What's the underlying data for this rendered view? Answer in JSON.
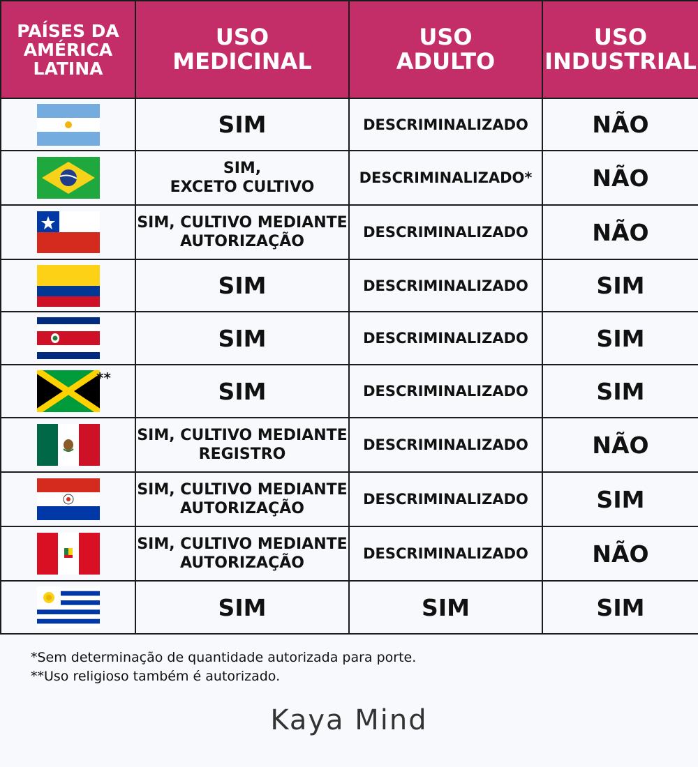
{
  "header": {
    "country": "PAÍSES DA AMÉRICA LATINA",
    "medicinal": "USO MEDICINAL",
    "adulto": "USO ADULTO",
    "industrial": "USO INDUSTRIAL"
  },
  "rows": [
    {
      "flag": "argentina-flag",
      "mark": "",
      "medicinal": "SIM",
      "adulto": "DESCRIMINALIZADO",
      "industrial": "NÃO"
    },
    {
      "flag": "brazil-flag",
      "mark": "",
      "medicinal": "SIM,\nEXCETO CULTIVO",
      "adulto": "DESCRIMINALIZADO*",
      "industrial": "NÃO"
    },
    {
      "flag": "chile-flag",
      "mark": "",
      "medicinal": "SIM, CULTIVO MEDIANTE\nAUTORIZAÇÃO",
      "adulto": "DESCRIMINALIZADO",
      "industrial": "NÃO"
    },
    {
      "flag": "colombia-flag",
      "mark": "",
      "medicinal": "SIM",
      "adulto": "DESCRIMINALIZADO",
      "industrial": "SIM"
    },
    {
      "flag": "costa-rica-flag",
      "mark": "",
      "medicinal": "SIM",
      "adulto": "DESCRIMINALIZADO",
      "industrial": "SIM"
    },
    {
      "flag": "jamaica-flag",
      "mark": "**",
      "medicinal": "SIM",
      "adulto": "DESCRIMINALIZADO",
      "industrial": "SIM"
    },
    {
      "flag": "mexico-flag",
      "mark": "",
      "medicinal": "SIM, CULTIVO MEDIANTE\nREGISTRO",
      "adulto": "DESCRIMINALIZADO",
      "industrial": "NÃO"
    },
    {
      "flag": "paraguay-flag",
      "mark": "",
      "medicinal": "SIM, CULTIVO MEDIANTE\nAUTORIZAÇÃO",
      "adulto": "DESCRIMINALIZADO",
      "industrial": "SIM"
    },
    {
      "flag": "peru-flag",
      "mark": "",
      "medicinal": "SIM, CULTIVO MEDIANTE\nAUTORIZAÇÃO",
      "adulto": "DESCRIMINALIZADO",
      "industrial": "NÃO"
    },
    {
      "flag": "uruguay-flag",
      "mark": "",
      "medicinal": "SIM",
      "adulto": "SIM",
      "industrial": "SIM"
    }
  ],
  "notes": {
    "note1": "*Sem determinação de quantidade autorizada para porte.",
    "note2": "**Uso religioso também é autorizado."
  },
  "brand": "Kaya Mind",
  "colors": {
    "header_bg": "#c42e68",
    "border": "#1b1b1b",
    "background": "#f7f9fc"
  }
}
